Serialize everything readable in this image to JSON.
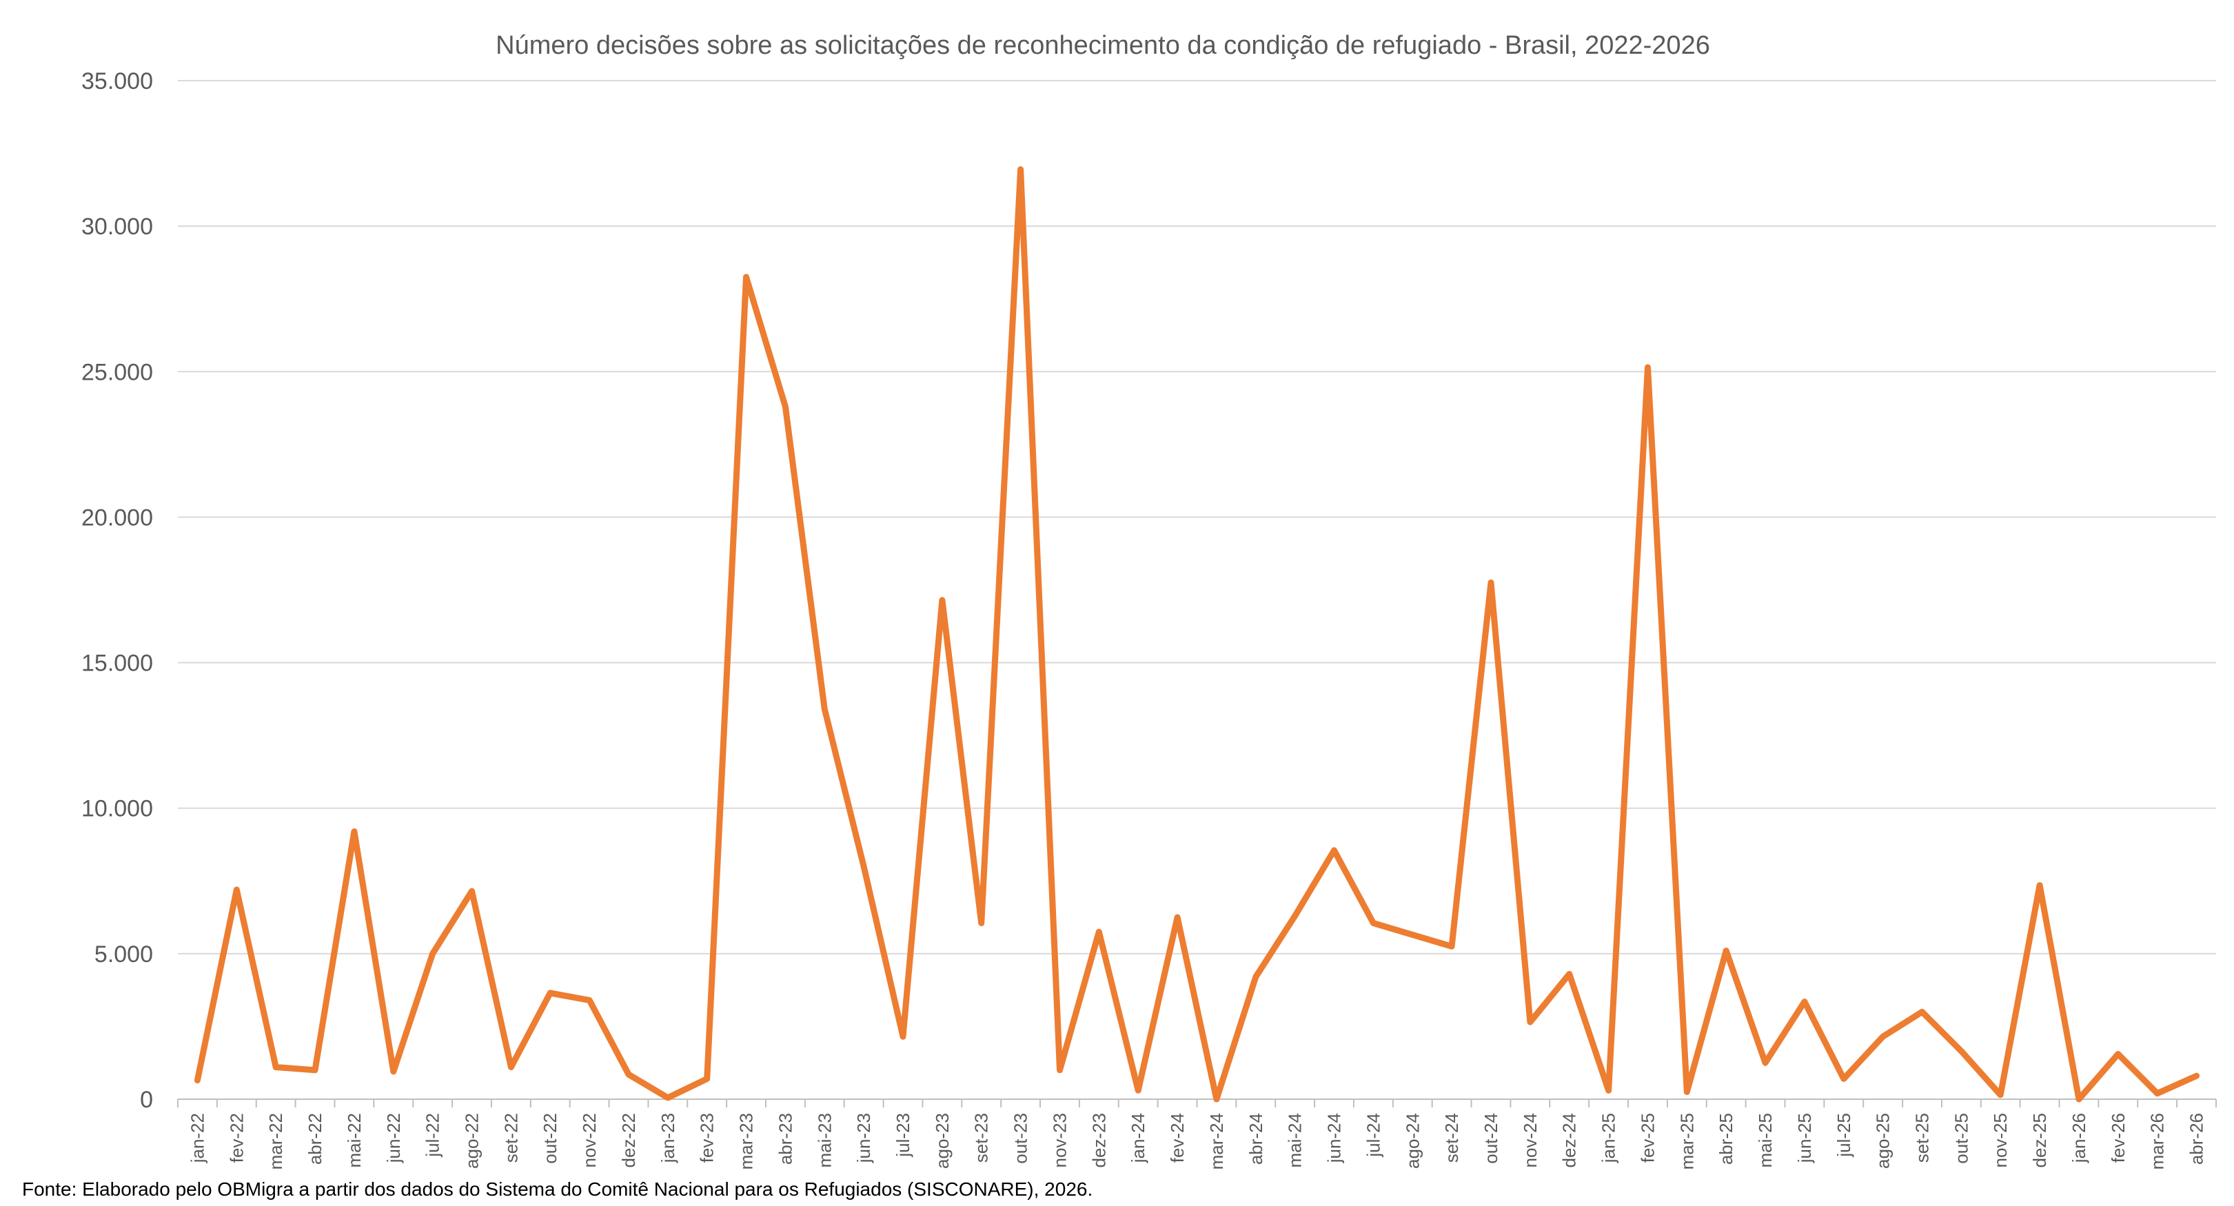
{
  "chart_data": {
    "type": "line",
    "title": "Número decisões sobre as solicitações de reconhecimento da condição de refugiado - Brasil, 2022-2026",
    "xlabel": "",
    "ylabel": "",
    "ylim": [
      0,
      35000
    ],
    "yticks": [
      {
        "value": 0,
        "label": "0"
      },
      {
        "value": 5000,
        "label": "5.000"
      },
      {
        "value": 10000,
        "label": "10.000"
      },
      {
        "value": 15000,
        "label": "15.000"
      },
      {
        "value": 20000,
        "label": "20.000"
      },
      {
        "value": 25000,
        "label": "25.000"
      },
      {
        "value": 30000,
        "label": "30.000"
      },
      {
        "value": 35000,
        "label": "35.000"
      }
    ],
    "grid": true,
    "legend": "none",
    "color": "#ED7D31",
    "categories": [
      "jan-22",
      "fev-22",
      "mar-22",
      "abr-22",
      "mai-22",
      "jun-22",
      "jul-22",
      "ago-22",
      "set-22",
      "out-22",
      "nov-22",
      "dez-22",
      "jan-23",
      "fev-23",
      "mar-23",
      "abr-23",
      "mai-23",
      "jun-23",
      "jul-23",
      "ago-23",
      "set-23",
      "out-23",
      "nov-23",
      "dez-23",
      "jan-24",
      "fev-24",
      "mar-24",
      "abr-24",
      "mai-24",
      "jun-24",
      "jul-24",
      "ago-24",
      "set-24",
      "out-24",
      "nov-24",
      "dez-24",
      "jan-25",
      "fev-25",
      "mar-25",
      "abr-25",
      "mai-25",
      "jun-25",
      "jul-25",
      "ago-25",
      "set-25",
      "out-25",
      "nov-25",
      "dez-25",
      "jan-26",
      "fev-26",
      "mar-26",
      "abr-26"
    ],
    "series": [
      {
        "values": [
          650,
          7200,
          1100,
          1000,
          9200,
          950,
          5000,
          7150,
          1100,
          3650,
          3400,
          850,
          50,
          700,
          28250,
          23800,
          13400,
          8000,
          2150,
          17150,
          6050,
          31950,
          1000,
          5750,
          300,
          6250,
          0,
          4200,
          6300,
          8550,
          6050,
          5650,
          5250,
          17750,
          2650,
          4300,
          300,
          25150,
          250,
          5100,
          1250,
          3350,
          700,
          2150,
          3000,
          1650,
          150,
          7350,
          0,
          1550,
          200,
          800
        ]
      }
    ]
  },
  "source_note": "Fonte: Elaborado pelo OBMigra a partir dos dados  do Sistema do Comitê Nacional para os Refugiados (SISCONARE), 2026."
}
